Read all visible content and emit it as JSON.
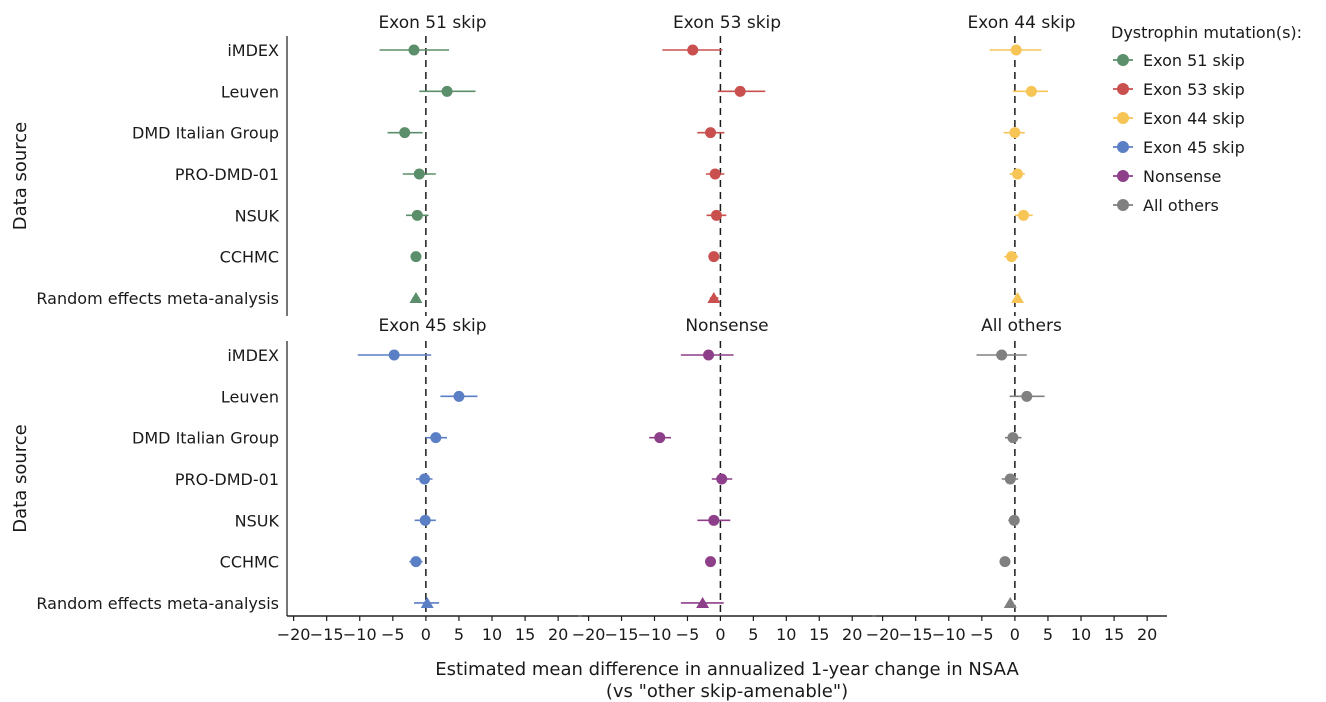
{
  "chart_data": {
    "type": "scatter",
    "subtype": "forest-plot-small-multiples",
    "xlabel_line1": "Estimated mean difference in annualized 1-year change in NSAA",
    "xlabel_line2": "(vs \"other skip-amenable\")",
    "ylabel": "Data source",
    "xlim": [
      -21,
      23
    ],
    "xticks": [
      -20,
      -15,
      -10,
      -5,
      0,
      5,
      10,
      15,
      20
    ],
    "reference_line_x": 0,
    "grid": false,
    "legend_placement": "right",
    "legend": {
      "title": "Dystrophin mutation(s):",
      "entries": [
        {
          "label": "Exon 51 skip",
          "color": "#5b8e6b"
        },
        {
          "label": "Exon 53 skip",
          "color": "#c9504f"
        },
        {
          "label": "Exon 44 skip",
          "color": "#f7c556"
        },
        {
          "label": "Exon 45 skip",
          "color": "#5b7fc4"
        },
        {
          "label": "Nonsense",
          "color": "#8e3f8a"
        },
        {
          "label": "All others",
          "color": "#808080"
        }
      ]
    },
    "rows": [
      "iMDEX",
      "Leuven",
      "DMD Italian Group",
      "PRO-DMD-01",
      "NSUK",
      "CCHMC",
      "Random effects meta-analysis"
    ],
    "panels": [
      {
        "title": "Exon 51 skip",
        "color": "#5b8e6b",
        "estimates": [
          -1.8,
          3.2,
          -3.2,
          -1.0,
          -1.3,
          -1.5,
          -1.5
        ],
        "ci_low": [
          -7.0,
          -1.0,
          -5.8,
          -3.5,
          -3.0,
          -2.3,
          -2.0
        ],
        "ci_high": [
          3.5,
          7.5,
          -0.5,
          1.5,
          0.4,
          -0.7,
          -1.0
        ]
      },
      {
        "title": "Exon 53 skip",
        "color": "#c9504f",
        "estimates": [
          -4.2,
          3.0,
          -1.5,
          -0.8,
          -0.6,
          -1.0,
          -1.0
        ],
        "ci_low": [
          -8.8,
          -0.4,
          -3.5,
          -2.2,
          -2.1,
          -1.8,
          -1.6
        ],
        "ci_high": [
          0.3,
          6.8,
          0.6,
          0.6,
          0.9,
          -0.2,
          -0.3
        ]
      },
      {
        "title": "Exon 44 skip",
        "color": "#f7c556",
        "estimates": [
          0.2,
          2.5,
          0.0,
          0.4,
          1.3,
          -0.5,
          0.4
        ],
        "ci_low": [
          -3.8,
          -0.3,
          -1.7,
          -0.8,
          0.0,
          -1.6,
          0.0
        ],
        "ci_high": [
          4.0,
          5.0,
          1.5,
          1.5,
          2.7,
          0.5,
          0.8
        ]
      },
      {
        "title": "Exon 45 skip",
        "color": "#5b7fc4",
        "estimates": [
          -4.8,
          5.0,
          1.5,
          -0.2,
          -0.1,
          -1.5,
          0.2
        ],
        "ci_low": [
          -10.3,
          2.2,
          0.0,
          -1.5,
          -1.7,
          -2.5,
          -1.8
        ],
        "ci_high": [
          0.8,
          7.8,
          3.2,
          1.0,
          1.5,
          -0.5,
          2.0
        ]
      },
      {
        "title": "Nonsense",
        "color": "#8e3f8a",
        "estimates": [
          -1.8,
          null,
          -9.2,
          0.2,
          -1.0,
          -1.5,
          -2.7
        ],
        "ci_low": [
          -6.0,
          null,
          -10.8,
          -1.3,
          -3.5,
          -2.3,
          -6.0
        ],
        "ci_high": [
          2.0,
          null,
          -7.5,
          1.8,
          1.5,
          -0.7,
          0.5
        ]
      },
      {
        "title": "All others",
        "color": "#808080",
        "estimates": [
          -2.0,
          1.8,
          -0.3,
          -0.7,
          -0.1,
          -1.5,
          -0.7
        ],
        "ci_low": [
          -5.8,
          -0.8,
          -1.5,
          -2.0,
          -1.0,
          -2.0,
          -1.2
        ],
        "ci_high": [
          1.8,
          4.5,
          1.0,
          0.5,
          0.7,
          -1.0,
          -0.2
        ]
      }
    ]
  }
}
